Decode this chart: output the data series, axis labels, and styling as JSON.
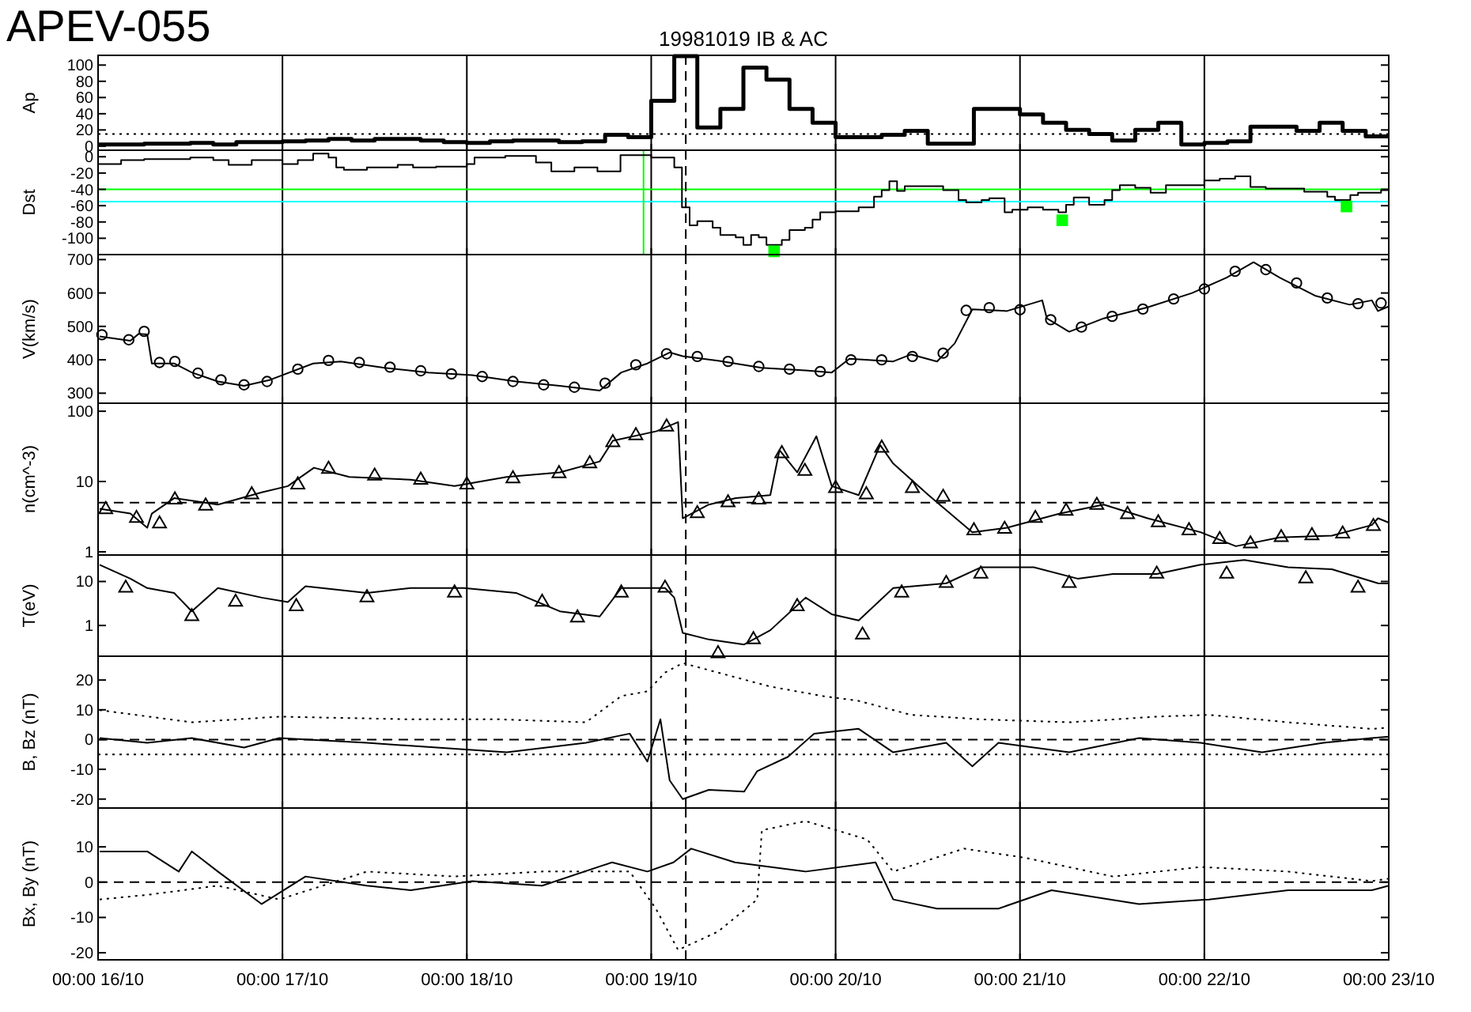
{
  "chart_data": [
    {
      "type": "step",
      "title": "APEV-055",
      "subtitle": "19981019 IB & AC",
      "ylabel": "Ap",
      "xlim": [
        "1998-10-16T00:00",
        "1998-10-23T00:00"
      ],
      "xticks": [
        {
          "value": "1998-10-16T00:00",
          "label": null
        },
        {
          "value": "1998-10-17T00:00",
          "label": null
        },
        {
          "value": "1998-10-18T00:00",
          "label": null
        },
        {
          "value": "1998-10-19T00:00",
          "label": null
        },
        {
          "value": "1998-10-20T00:00",
          "label": null
        },
        {
          "value": "1998-10-21T00:00",
          "label": null
        },
        {
          "value": "1998-10-22T00:00",
          "label": null
        },
        {
          "value": "1998-10-23T00:00",
          "label": null
        }
      ],
      "tick_labels": "y",
      "grid": "x",
      "ylim": [
        -5,
        112
      ],
      "yticks": [
        0,
        20,
        40,
        60,
        80,
        100
      ],
      "series": [
        {
          "color": "#000000",
          "x": [
            "1998-10-16T00:00",
            "1998-10-16T03:00",
            "1998-10-16T06:00",
            "1998-10-16T09:00",
            "1998-10-16T12:00",
            "1998-10-16T15:00",
            "1998-10-16T18:00",
            "1998-10-16T21:00",
            "1998-10-17T00:00",
            "1998-10-17T03:00",
            "1998-10-17T06:00",
            "1998-10-17T09:00",
            "1998-10-17T12:00",
            "1998-10-17T15:00",
            "1998-10-17T18:00",
            "1998-10-17T21:00",
            "1998-10-18T00:00",
            "1998-10-18T03:00",
            "1998-10-18T06:00",
            "1998-10-18T09:00",
            "1998-10-18T12:00",
            "1998-10-18T15:00",
            "1998-10-18T18:00",
            "1998-10-18T21:00",
            "1998-10-19T00:00",
            "1998-10-19T03:00",
            "1998-10-19T06:00",
            "1998-10-19T09:00",
            "1998-10-19T12:00",
            "1998-10-19T15:00",
            "1998-10-19T18:00",
            "1998-10-19T21:00",
            "1998-10-20T00:00",
            "1998-10-20T03:00",
            "1998-10-20T06:00",
            "1998-10-20T09:00",
            "1998-10-20T12:00",
            "1998-10-20T15:00",
            "1998-10-20T18:00",
            "1998-10-20T21:00",
            "1998-10-21T00:00",
            "1998-10-21T03:00",
            "1998-10-21T06:00",
            "1998-10-21T09:00",
            "1998-10-21T12:00",
            "1998-10-21T15:00",
            "1998-10-21T18:00",
            "1998-10-21T21:00",
            "1998-10-22T00:00",
            "1998-10-22T03:00",
            "1998-10-22T06:00",
            "1998-10-22T09:00",
            "1998-10-22T12:00",
            "1998-10-22T15:00",
            "1998-10-22T18:00",
            "1998-10-22T21:00",
            "1998-10-23T00:00"
          ],
          "values": [
            2,
            2,
            3,
            3,
            4,
            2,
            5,
            5,
            6,
            7,
            9,
            7,
            9,
            9,
            7,
            5,
            4,
            6,
            7,
            7,
            5,
            6,
            14,
            11,
            56,
            111,
            23,
            46,
            97,
            82,
            46,
            29,
            11,
            11,
            14,
            19,
            3,
            3,
            46,
            46,
            39,
            29,
            20,
            15,
            7,
            20,
            29,
            2,
            4,
            6,
            24,
            24,
            19,
            29,
            19,
            12,
            12
          ]
        }
      ],
      "ref_lines": [
        {
          "axis": "y",
          "value": 15,
          "color": "#000000",
          "line_style": "dotted"
        },
        {
          "axis": "x",
          "value": "1998-10-19T04:30",
          "color": "#000000",
          "line_style": "dashed"
        }
      ]
    },
    {
      "type": "step",
      "ylabel": "Dst",
      "xlim": [
        "1998-10-16T00:00",
        "1998-10-23T00:00"
      ],
      "xticks": [
        {
          "value": "1998-10-16T00:00",
          "label": null
        },
        {
          "value": "1998-10-17T00:00",
          "label": null
        },
        {
          "value": "1998-10-18T00:00",
          "label": null
        },
        {
          "value": "1998-10-19T00:00",
          "label": null
        },
        {
          "value": "1998-10-20T00:00",
          "label": null
        },
        {
          "value": "1998-10-21T00:00",
          "label": null
        },
        {
          "value": "1998-10-22T00:00",
          "label": null
        },
        {
          "value": "1998-10-23T00:00",
          "label": null
        }
      ],
      "tick_labels": "y",
      "grid": "x",
      "ylim": [
        -120,
        8
      ],
      "yticks": [
        -100,
        -80,
        -60,
        -40,
        -20,
        0
      ],
      "series": [
        {
          "color": "#000000",
          "x": [
            "1998-10-16T00:00",
            "1998-10-16T03:00",
            "1998-10-16T06:00",
            "1998-10-16T12:00",
            "1998-10-16T15:00",
            "1998-10-16T17:00",
            "1998-10-16T20:00",
            "1998-10-17T00:00",
            "1998-10-17T02:00",
            "1998-10-17T04:00",
            "1998-10-17T06:00",
            "1998-10-17T07:00",
            "1998-10-17T08:00",
            "1998-10-17T11:00",
            "1998-10-17T15:00",
            "1998-10-17T17:00",
            "1998-10-17T20:00",
            "1998-10-18T00:00",
            "1998-10-18T01:00",
            "1998-10-18T05:00",
            "1998-10-18T09:00",
            "1998-10-18T11:00",
            "1998-10-18T14:00",
            "1998-10-18T17:00",
            "1998-10-18T20:00",
            "1998-10-19T00:00",
            "1998-10-19T03:00",
            "1998-10-19T04:00",
            "1998-10-19T05:00",
            "1998-10-19T06:00",
            "1998-10-19T08:00",
            "1998-10-19T09:00",
            "1998-10-19T11:00",
            "1998-10-19T12:00",
            "1998-10-19T13:00",
            "1998-10-19T14:00",
            "1998-10-19T15:00",
            "1998-10-19T17:00",
            "1998-10-19T18:00",
            "1998-10-19T20:00",
            "1998-10-19T21:00",
            "1998-10-19T22:00",
            "1998-10-20T00:00",
            "1998-10-20T03:00",
            "1998-10-20T05:00",
            "1998-10-20T06:00",
            "1998-10-20T07:00",
            "1998-10-20T08:00",
            "1998-10-20T09:00",
            "1998-10-20T14:00",
            "1998-10-20T16:00",
            "1998-10-20T17:00",
            "1998-10-20T19:00",
            "1998-10-20T20:00",
            "1998-10-20T22:00",
            "1998-10-20T23:00",
            "1998-10-21T01:00",
            "1998-10-21T03:00",
            "1998-10-21T05:00",
            "1998-10-21T06:00",
            "1998-10-21T07:00",
            "1998-10-21T09:00",
            "1998-10-21T11:00",
            "1998-10-21T12:00",
            "1998-10-21T13:00",
            "1998-10-21T15:00",
            "1998-10-21T17:00",
            "1998-10-21T19:00",
            "1998-10-22T00:00",
            "1998-10-22T02:00",
            "1998-10-22T04:00",
            "1998-10-22T06:00",
            "1998-10-22T08:00",
            "1998-10-22T13:00",
            "1998-10-22T16:00",
            "1998-10-22T17:00",
            "1998-10-22T19:00",
            "1998-10-22T20:00",
            "1998-10-22T23:00",
            "1998-10-23T00:00"
          ],
          "values": [
            -9,
            -4,
            -3,
            -1,
            -4,
            -10,
            -4,
            -9,
            -4,
            4,
            -1,
            -13,
            -16,
            -13,
            -10,
            -13,
            -12,
            -9,
            -1,
            1,
            -7,
            -18,
            -13,
            -18,
            2,
            -1,
            -13,
            -62,
            -84,
            -79,
            -87,
            -96,
            -99,
            -108,
            -96,
            -99,
            -108,
            -102,
            -90,
            -87,
            -77,
            -68,
            -67,
            -62,
            -49,
            -41,
            -30,
            -42,
            -36,
            -41,
            -53,
            -56,
            -53,
            -51,
            -68,
            -65,
            -62,
            -65,
            -68,
            -59,
            -50,
            -59,
            -53,
            -41,
            -35,
            -38,
            -44,
            -35,
            -29,
            -27,
            -24,
            -37,
            -39,
            -43,
            -49,
            -53,
            -47,
            -44,
            -41,
            -41
          ]
        },
        {
          "type": "scatter",
          "marker": "square",
          "color": "#00ff00",
          "x": [
            "1998-10-19T16:00",
            "1998-10-21T05:30",
            "1998-10-22T18:30"
          ],
          "values": [
            -116,
            -78,
            -61
          ]
        }
      ],
      "ref_lines": [
        {
          "axis": "y",
          "value": -40,
          "color": "#00ff00",
          "line_style": "solid"
        },
        {
          "axis": "y",
          "value": -55,
          "color": "#00ffff",
          "line_style": "solid"
        },
        {
          "axis": "x",
          "value": "1998-10-18T23:00",
          "color": "#00ff00",
          "line_style": "solid"
        },
        {
          "axis": "x",
          "value": "1998-10-19T04:30",
          "color": "#000000",
          "line_style": "dashed"
        }
      ]
    },
    {
      "type": "line",
      "ylabel": "V(km/s)",
      "xlim": [
        "1998-10-16T00:00",
        "1998-10-23T00:00"
      ],
      "xticks": [
        {
          "value": "1998-10-16T00:00",
          "label": null
        },
        {
          "value": "1998-10-17T00:00",
          "label": null
        },
        {
          "value": "1998-10-18T00:00",
          "label": null
        },
        {
          "value": "1998-10-19T00:00",
          "label": null
        },
        {
          "value": "1998-10-20T00:00",
          "label": null
        },
        {
          "value": "1998-10-21T00:00",
          "label": null
        },
        {
          "value": "1998-10-22T00:00",
          "label": null
        },
        {
          "value": "1998-10-23T00:00",
          "label": null
        }
      ],
      "tick_labels": "y",
      "grid": "x",
      "ylim": [
        270,
        715
      ],
      "yticks": [
        300,
        400,
        500,
        600,
        700
      ],
      "series": [
        {
          "color": "#000000",
          "x": [
            "1998-10-16T00:12",
            "1998-10-16T04:12",
            "1998-10-16T05:18",
            "1998-10-16T06:24",
            "1998-10-16T07:00",
            "1998-10-16T09:54",
            "1998-10-16T12:12",
            "1998-10-16T15:36",
            "1998-10-16T19:00",
            "1998-10-16T22:24",
            "1998-10-17T04:00",
            "1998-10-17T07:36",
            "1998-10-17T13:18",
            "1998-10-17T19:00",
            "1998-10-18T00:42",
            "1998-10-18T06:24",
            "1998-10-18T12:06",
            "1998-10-18T17:18",
            "1998-10-18T20:06",
            "1998-10-18T23:30",
            "1998-10-19T02:24",
            "1998-10-19T04:06",
            "1998-10-19T08:42",
            "1998-10-19T14:24",
            "1998-10-19T20:06",
            "1998-10-19T23:30",
            "1998-10-20T01:48",
            "1998-10-20T07:30",
            "1998-10-20T09:48",
            "1998-10-20T13:12",
            "1998-10-20T15:30",
            "1998-10-20T17:48",
            "1998-10-20T22:18",
            "1998-10-21T02:54",
            "1998-10-21T03:30",
            "1998-10-21T06:24",
            "1998-10-21T10:54",
            "1998-10-21T16:36",
            "1998-10-21T22:24",
            "1998-10-22T02:54",
            "1998-10-22T06:24",
            "1998-10-22T09:48",
            "1998-10-22T14:24",
            "1998-10-22T18:54",
            "1998-10-22T21:48",
            "1998-10-22T22:36",
            "1998-10-23T00:00"
          ],
          "values": [
            470,
            457,
            478,
            476,
            389,
            389,
            362,
            335,
            322,
            340,
            389,
            395,
            376,
            362,
            354,
            335,
            322,
            308,
            362,
            389,
            422,
            411,
            397,
            376,
            368,
            362,
            403,
            395,
            416,
            395,
            449,
            551,
            546,
            578,
            524,
            484,
            524,
            557,
            600,
            646,
            692,
            646,
            592,
            565,
            578,
            546,
            560
          ]
        },
        {
          "type": "scatter",
          "marker": "circle",
          "color": "#000000",
          "x": [
            "1998-10-16T00:30",
            "1998-10-16T04:00",
            "1998-10-16T06:00",
            "1998-10-16T08:00",
            "1998-10-16T10:00",
            "1998-10-16T13:00",
            "1998-10-16T16:00",
            "1998-10-16T19:00",
            "1998-10-16T22:00",
            "1998-10-17T02:00",
            "1998-10-17T06:00",
            "1998-10-17T10:00",
            "1998-10-17T14:00",
            "1998-10-17T18:00",
            "1998-10-17T22:00",
            "1998-10-18T02:00",
            "1998-10-18T06:00",
            "1998-10-18T10:00",
            "1998-10-18T14:00",
            "1998-10-18T18:00",
            "1998-10-18T22:00",
            "1998-10-19T02:00",
            "1998-10-19T06:00",
            "1998-10-19T10:00",
            "1998-10-19T14:00",
            "1998-10-19T18:00",
            "1998-10-19T22:00",
            "1998-10-20T02:00",
            "1998-10-20T06:00",
            "1998-10-20T10:00",
            "1998-10-20T14:00",
            "1998-10-20T17:00",
            "1998-10-20T20:00",
            "1998-10-21T00:00",
            "1998-10-21T04:00",
            "1998-10-21T08:00",
            "1998-10-21T12:00",
            "1998-10-21T16:00",
            "1998-10-21T20:00",
            "1998-10-22T00:00",
            "1998-10-22T04:00",
            "1998-10-22T08:00",
            "1998-10-22T12:00",
            "1998-10-22T16:00",
            "1998-10-22T20:00",
            "1998-10-22T23:00"
          ],
          "values": [
            475,
            460,
            485,
            392,
            395,
            360,
            340,
            325,
            335,
            372,
            398,
            392,
            378,
            367,
            358,
            350,
            335,
            325,
            318,
            330,
            385,
            418,
            410,
            395,
            380,
            372,
            365,
            400,
            400,
            410,
            420,
            548,
            556,
            550,
            520,
            498,
            530,
            552,
            582,
            612,
            665,
            670,
            630,
            585,
            568,
            570
          ]
        }
      ],
      "ref_lines": [
        {
          "axis": "x",
          "value": "1998-10-19T04:30",
          "color": "#000000",
          "line_style": "dashed"
        }
      ]
    },
    {
      "type": "line",
      "log": true,
      "ylabel": "n(cm^-3)",
      "xlim": [
        "1998-10-16T00:00",
        "1998-10-23T00:00"
      ],
      "xticks": [
        {
          "value": "1998-10-16T00:00",
          "label": null
        },
        {
          "value": "1998-10-17T00:00",
          "label": null
        },
        {
          "value": "1998-10-18T00:00",
          "label": null
        },
        {
          "value": "1998-10-19T00:00",
          "label": null
        },
        {
          "value": "1998-10-20T00:00",
          "label": null
        },
        {
          "value": "1998-10-21T00:00",
          "label": null
        },
        {
          "value": "1998-10-22T00:00",
          "label": null
        },
        {
          "value": "1998-10-23T00:00",
          "label": null
        }
      ],
      "tick_labels": "y",
      "grid": "x",
      "ylim": [
        0.9,
        130
      ],
      "yticks": [
        1,
        10,
        100
      ],
      "series": [
        {
          "color": "#000000",
          "x": [
            "1998-10-16T00:12",
            "1998-10-16T04:12",
            "1998-10-16T06:24",
            "1998-10-16T07:00",
            "1998-10-16T09:54",
            "1998-10-16T15:36",
            "1998-10-16T21:18",
            "1998-10-17T00:42",
            "1998-10-17T04:06",
            "1998-10-17T08:42",
            "1998-10-17T16:42",
            "1998-10-17T22:24",
            "1998-10-18T05:12",
            "1998-10-18T12:06",
            "1998-10-18T17:18",
            "1998-10-18T19:00",
            "1998-10-19T00:42",
            "1998-10-19T03:30",
            "1998-10-19T04:06",
            "1998-10-19T07:30",
            "1998-10-19T11:00",
            "1998-10-19T15:30",
            "1998-10-19T16:42",
            "1998-10-19T19:00",
            "1998-10-19T21:30",
            "1998-10-19T23:30",
            "1998-10-20T03:00",
            "1998-10-20T05:48",
            "1998-10-20T07:30",
            "1998-10-20T12:06",
            "1998-10-20T17:48",
            "1998-10-20T22:18",
            "1998-10-21T05:12",
            "1998-10-21T10:54",
            "1998-10-21T16:36",
            "1998-10-21T23:30",
            "1998-10-22T04:06",
            "1998-10-22T09:48",
            "1998-10-22T16:36",
            "1998-10-22T21:48",
            "1998-10-22T22:36",
            "1998-10-23T00:00"
          ],
          "values": [
            4.1,
            3.5,
            2.2,
            3.5,
            5.8,
            4.7,
            7,
            8.6,
            15.7,
            11.6,
            10.6,
            8.6,
            11.6,
            13.5,
            19.3,
            38,
            52,
            70,
            3,
            4.7,
            5.8,
            6.4,
            28,
            13.5,
            44,
            8.6,
            6.4,
            33,
            18,
            6.4,
            1.9,
            2.2,
            3.5,
            4.7,
            3,
            1.9,
            1.2,
            1.6,
            1.7,
            2.4,
            3,
            2.6
          ]
        },
        {
          "type": "scatter",
          "marker": "triangle",
          "color": "#000000",
          "x": [
            "1998-10-16T01:00",
            "1998-10-16T05:00",
            "1998-10-16T08:00",
            "1998-10-16T10:00",
            "1998-10-16T14:00",
            "1998-10-16T20:00",
            "1998-10-17T02:00",
            "1998-10-17T06:00",
            "1998-10-17T12:00",
            "1998-10-17T18:00",
            "1998-10-18T00:00",
            "1998-10-18T06:00",
            "1998-10-18T12:00",
            "1998-10-18T16:00",
            "1998-10-18T19:00",
            "1998-10-18T22:00",
            "1998-10-19T02:00",
            "1998-10-19T06:00",
            "1998-10-19T10:00",
            "1998-10-19T14:00",
            "1998-10-19T17:00",
            "1998-10-19T20:00",
            "1998-10-20T00:00",
            "1998-10-20T04:00",
            "1998-10-20T06:00",
            "1998-10-20T10:00",
            "1998-10-20T14:00",
            "1998-10-20T18:00",
            "1998-10-20T22:00",
            "1998-10-21T02:00",
            "1998-10-21T06:00",
            "1998-10-21T10:00",
            "1998-10-21T14:00",
            "1998-10-21T18:00",
            "1998-10-21T22:00",
            "1998-10-22T02:00",
            "1998-10-22T06:00",
            "1998-10-22T10:00",
            "1998-10-22T14:00",
            "1998-10-22T18:00",
            "1998-10-22T22:00"
          ],
          "values": [
            4,
            3,
            2.5,
            5.5,
            4.5,
            6.5,
            9,
            15,
            12,
            10.5,
            9,
            11,
            13,
            18,
            36,
            45,
            60,
            3.5,
            5,
            5.5,
            25,
            14,
            8,
            6.5,
            30,
            8,
            6,
            2,
            2.1,
            3,
            3.8,
            4.6,
            3.4,
            2.6,
            2,
            1.5,
            1.3,
            1.6,
            1.7,
            1.8,
            2.3
          ]
        }
      ],
      "ref_lines": [
        {
          "axis": "y",
          "value": 5,
          "color": "#000000",
          "line_style": "dashed"
        },
        {
          "axis": "x",
          "value": "1998-10-19T04:30",
          "color": "#000000",
          "line_style": "dashed"
        }
      ]
    },
    {
      "type": "line",
      "log": true,
      "ylabel": "T(eV)",
      "xlim": [
        "1998-10-16T00:00",
        "1998-10-23T00:00"
      ],
      "xticks": [
        {
          "value": "1998-10-16T00:00",
          "label": null
        },
        {
          "value": "1998-10-17T00:00",
          "label": null
        },
        {
          "value": "1998-10-18T00:00",
          "label": null
        },
        {
          "value": "1998-10-19T00:00",
          "label": null
        },
        {
          "value": "1998-10-20T00:00",
          "label": null
        },
        {
          "value": "1998-10-21T00:00",
          "label": null
        },
        {
          "value": "1998-10-22T00:00",
          "label": null
        },
        {
          "value": "1998-10-23T00:00",
          "label": null
        }
      ],
      "tick_labels": "y",
      "grid": "x",
      "ylim": [
        0.2,
        40
      ],
      "yticks": [
        1,
        10
      ],
      "series": [
        {
          "color": "#000000",
          "x": [
            "1998-10-16T00:12",
            "1998-10-16T04:12",
            "1998-10-16T06:24",
            "1998-10-16T09:54",
            "1998-10-16T12:12",
            "1998-10-16T15:36",
            "1998-10-16T21:18",
            "1998-10-17T00:42",
            "1998-10-17T03:00",
            "1998-10-17T11:00",
            "1998-10-17T16:42",
            "1998-10-17T23:36",
            "1998-10-18T06:24",
            "1998-10-18T12:06",
            "1998-10-18T17:18",
            "1998-10-18T20:06",
            "1998-10-19T01:48",
            "1998-10-19T03:00",
            "1998-10-19T04:06",
            "1998-10-19T07:30",
            "1998-10-19T12:06",
            "1998-10-19T15:30",
            "1998-10-19T20:06",
            "1998-10-19T23:30",
            "1998-10-20T03:00",
            "1998-10-20T07:30",
            "1998-10-20T14:24",
            "1998-10-20T18:54",
            "1998-10-21T01:48",
            "1998-10-21T07:30",
            "1998-10-21T12:06",
            "1998-10-21T17:48",
            "1998-10-21T23:30",
            "1998-10-22T05:12",
            "1998-10-22T10:54",
            "1998-10-22T16:36",
            "1998-10-22T22:36",
            "1998-10-23T00:00"
          ],
          "values": [
            24,
            11.6,
            7.1,
            5.5,
            2.1,
            7.1,
            4.3,
            3.4,
            7.8,
            5.5,
            7.1,
            7.1,
            5.5,
            2.1,
            1.6,
            7.1,
            7.1,
            4.3,
            0.68,
            0.48,
            0.37,
            0.78,
            4.3,
            1.8,
            1.3,
            7.1,
            9.1,
            21,
            21,
            11.6,
            14.8,
            14.8,
            24,
            31,
            21,
            19,
            9.1,
            9
          ]
        },
        {
          "type": "scatter",
          "marker": "triangle",
          "color": "#000000",
          "x": [
            "1998-10-16T03:36",
            "1998-10-16T12:12",
            "1998-10-16T17:54",
            "1998-10-17T01:48",
            "1998-10-17T11:00",
            "1998-10-17T22:24",
            "1998-10-18T09:48",
            "1998-10-18T14:24",
            "1998-10-18T20:06",
            "1998-10-19T01:48",
            "1998-10-19T08:42",
            "1998-10-19T13:18",
            "1998-10-19T19:00",
            "1998-10-20T03:30",
            "1998-10-20T08:36",
            "1998-10-20T14:24",
            "1998-10-20T18:54",
            "1998-10-21T06:24",
            "1998-10-21T17:48",
            "1998-10-22T02:54",
            "1998-10-22T13:12",
            "1998-10-22T20:00"
          ],
          "values": [
            7.1,
            1.6,
            3.4,
            2.7,
            4.3,
            5.5,
            3.4,
            1.5,
            5.5,
            7.1,
            0.23,
            0.48,
            2.7,
            0.61,
            5.5,
            9.1,
            14.8,
            9.1,
            14.8,
            14.8,
            11.6,
            7.1
          ]
        }
      ],
      "ref_lines": [
        {
          "axis": "x",
          "value": "1998-10-19T04:30",
          "color": "#000000",
          "line_style": "dashed"
        }
      ]
    },
    {
      "type": "line",
      "ylabel": "B, Bz (nT)",
      "xlim": [
        "1998-10-16T00:00",
        "1998-10-23T00:00"
      ],
      "xticks": [
        {
          "value": "1998-10-16T00:00",
          "label": null
        },
        {
          "value": "1998-10-17T00:00",
          "label": null
        },
        {
          "value": "1998-10-18T00:00",
          "label": null
        },
        {
          "value": "1998-10-19T00:00",
          "label": null
        },
        {
          "value": "1998-10-20T00:00",
          "label": null
        },
        {
          "value": "1998-10-21T00:00",
          "label": null
        },
        {
          "value": "1998-10-22T00:00",
          "label": null
        },
        {
          "value": "1998-10-23T00:00",
          "label": null
        }
      ],
      "tick_labels": "y",
      "grid": "x",
      "ylim": [
        -23,
        28
      ],
      "yticks": [
        -20,
        -10,
        0,
        10,
        20
      ],
      "series": [
        {
          "color": "#000000",
          "line_style": "dotted",
          "x": [
            "1998-10-16T00:12",
            "1998-10-16T12:12",
            "1998-10-16T23:36",
            "1998-10-17T05:18",
            "1998-10-17T16:42",
            "1998-10-18T04:06",
            "1998-10-18T15:30",
            "1998-10-18T20:06",
            "1998-10-18T23:30",
            "1998-10-19T01:48",
            "1998-10-19T04:06",
            "1998-10-19T08:42",
            "1998-10-19T15:30",
            "1998-10-19T22:24",
            "1998-10-20T03:00",
            "1998-10-20T09:48",
            "1998-10-20T18:54",
            "1998-10-21T06:24",
            "1998-10-21T17:48",
            "1998-10-22T00:36",
            "1998-10-22T10:54",
            "1998-10-22T21:48",
            "1998-10-23T00:00"
          ],
          "values": [
            9.9,
            5.8,
            7.7,
            7.4,
            6.8,
            6.8,
            5.8,
            14.6,
            16.2,
            22.5,
            25.7,
            22.5,
            17.8,
            14.6,
            13,
            8.3,
            6.8,
            5.8,
            7.7,
            8.3,
            5.8,
            3.6,
            4
          ]
        },
        {
          "color": "#000000",
          "line_style": "solid",
          "x": [
            "1998-10-16T00:12",
            "1998-10-16T06:24",
            "1998-10-16T12:12",
            "1998-10-16T19:00",
            "1998-10-16T23:36",
            "1998-10-17T11:00",
            "1998-10-17T20:06",
            "1998-10-18T05:12",
            "1998-10-18T15:30",
            "1998-10-18T21:12",
            "1998-10-18T23:30",
            "1998-10-19T01:12",
            "1998-10-19T02:24",
            "1998-10-19T04:06",
            "1998-10-19T07:30",
            "1998-10-19T12:06",
            "1998-10-19T13:48",
            "1998-10-19T17:48",
            "1998-10-19T21:12",
            "1998-10-20T03:00",
            "1998-10-20T07:30",
            "1998-10-20T14:24",
            "1998-10-20T17:48",
            "1998-10-20T21:12",
            "1998-10-21T06:24",
            "1998-10-21T15:30",
            "1998-10-21T23:30",
            "1998-10-22T07:30",
            "1998-10-22T15:30",
            "1998-10-22T21:48",
            "1998-10-23T00:00"
          ],
          "values": [
            0.5,
            -1.1,
            0.5,
            -2.7,
            0.5,
            -1.1,
            -2.7,
            -4.3,
            -1.1,
            2,
            -7.4,
            6.8,
            -13.7,
            -20,
            -16.9,
            -17.5,
            -10.6,
            -5.8,
            2,
            3.6,
            -4.3,
            -1.1,
            -9,
            -1.1,
            -4.3,
            0.5,
            -1.1,
            -4.3,
            -1.1,
            0.5,
            1
          ]
        }
      ],
      "ref_lines": [
        {
          "axis": "y",
          "value": 0,
          "color": "#000000",
          "line_style": "dashed"
        },
        {
          "axis": "y",
          "value": -5,
          "color": "#000000",
          "line_style": "dotted"
        },
        {
          "axis": "x",
          "value": "1998-10-19T04:30",
          "color": "#000000",
          "line_style": "dashed"
        }
      ]
    },
    {
      "type": "line",
      "ylabel": "Bx, By (nT)",
      "xlim": [
        "1998-10-16T00:00",
        "1998-10-23T00:00"
      ],
      "xticks": [
        {
          "value": "1998-10-16T00:00",
          "label": "00:00 16/10"
        },
        {
          "value": "1998-10-17T00:00",
          "label": "00:00 17/10"
        },
        {
          "value": "1998-10-18T00:00",
          "label": "00:00 18/10"
        },
        {
          "value": "1998-10-19T00:00",
          "label": "00:00 19/10"
        },
        {
          "value": "1998-10-20T00:00",
          "label": "00:00 20/10"
        },
        {
          "value": "1998-10-21T00:00",
          "label": "00:00 21/10"
        },
        {
          "value": "1998-10-22T00:00",
          "label": "00:00 22/10"
        },
        {
          "value": "1998-10-23T00:00",
          "label": "00:00 23/10"
        }
      ],
      "grid": "x",
      "ylim": [
        -22,
        21
      ],
      "yticks": [
        -20,
        -10,
        0,
        10
      ],
      "series": [
        {
          "color": "#000000",
          "line_style": "solid",
          "x": [
            "1998-10-16T00:12",
            "1998-10-16T06:24",
            "1998-10-16T10:30",
            "1998-10-16T12:12",
            "1998-10-16T15:36",
            "1998-10-16T21:18",
            "1998-10-17T03:00",
            "1998-10-17T11:00",
            "1998-10-17T16:42",
            "1998-10-18T00:42",
            "1998-10-18T09:48",
            "1998-10-18T18:54",
            "1998-10-18T23:30",
            "1998-10-19T02:54",
            "1998-10-19T05:12",
            "1998-10-19T10:54",
            "1998-10-19T20:06",
            "1998-10-20T05:12",
            "1998-10-20T07:30",
            "1998-10-20T13:12",
            "1998-10-20T21:12",
            "1998-10-21T04:06",
            "1998-10-21T15:30",
            "1998-10-22T00:36",
            "1998-10-22T10:54",
            "1998-10-22T21:48",
            "1998-10-23T00:00"
          ],
          "values": [
            8.7,
            8.7,
            3,
            8.7,
            3,
            -6.2,
            1.6,
            -1,
            -2.3,
            0.3,
            -1,
            5.6,
            3,
            5.6,
            9.5,
            5.6,
            3,
            5.6,
            -4.9,
            -7.5,
            -7.5,
            -2.3,
            -6.2,
            -4.9,
            -2.3,
            -2.3,
            -1
          ]
        },
        {
          "color": "#000000",
          "line_style": "dotted",
          "x": [
            "1998-10-16T00:12",
            "1998-10-16T06:24",
            "1998-10-16T15:36",
            "1998-10-16T23:36",
            "1998-10-17T11:00",
            "1998-10-17T22:24",
            "1998-10-18T09:48",
            "1998-10-18T21:12",
            "1998-10-19T00:36",
            "1998-10-19T03:30",
            "1998-10-19T08:42",
            "1998-10-19T13:48",
            "1998-10-19T14:24",
            "1998-10-19T20:06",
            "1998-10-20T04:06",
            "1998-10-20T07:30",
            "1998-10-20T16:42",
            "1998-10-21T00:42",
            "1998-10-21T12:06",
            "1998-10-21T23:30",
            "1998-10-22T10:54",
            "1998-10-22T21:48",
            "1998-10-23T00:00"
          ],
          "values": [
            -4.9,
            -3.6,
            -1,
            -4.9,
            3,
            1.6,
            3,
            3,
            -7.5,
            -19.2,
            -14,
            -4.9,
            14.7,
            17.3,
            12.1,
            3,
            9.5,
            6.9,
            1.6,
            4.3,
            3,
            0.3,
            1
          ]
        }
      ],
      "ref_lines": [
        {
          "axis": "y",
          "value": 0,
          "color": "#000000",
          "line_style": "dashed"
        },
        {
          "axis": "x",
          "value": "1998-10-19T04:30",
          "color": "#000000",
          "line_style": "dashed"
        }
      ]
    }
  ]
}
